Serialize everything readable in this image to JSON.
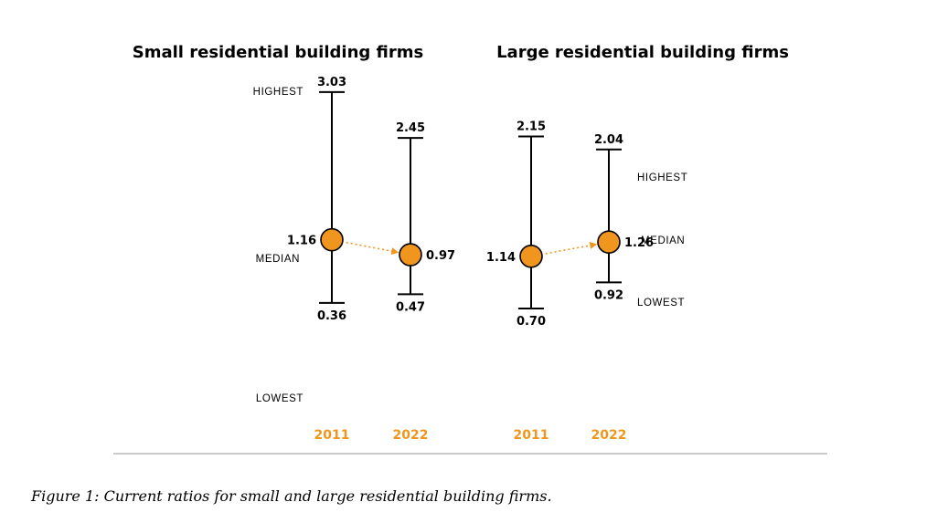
{
  "chart_data": [
    {
      "type": "range",
      "title": "Small residential building firms",
      "categories": [
        "2011",
        "2022"
      ],
      "high": [
        3.03,
        2.45
      ],
      "median": [
        1.16,
        0.97
      ],
      "low": [
        0.36,
        0.47
      ],
      "range_labels": {
        "high": "HIGHEST",
        "median": "MEDIAN",
        "low": "LOWEST"
      }
    },
    {
      "type": "range",
      "title": "Large residential building firms",
      "categories": [
        "2011",
        "2022"
      ],
      "high": [
        2.15,
        2.04
      ],
      "median": [
        1.14,
        1.26
      ],
      "low": [
        0.7,
        0.92
      ],
      "range_labels": {
        "high": "HIGHEST",
        "median": "MEDIAN",
        "low": "LOWEST"
      }
    }
  ],
  "caption": "Figure 1: Current ratios for small and large residential building firms.",
  "colors": {
    "accent": "#f0961e",
    "line": "#000000",
    "baseline": "#b8b8b8"
  }
}
